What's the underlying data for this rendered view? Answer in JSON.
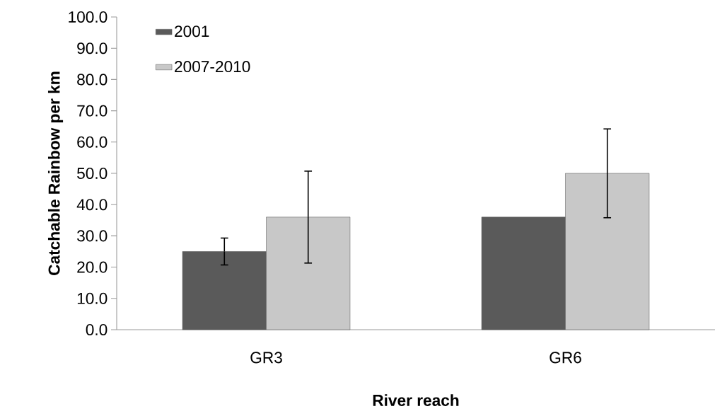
{
  "chart_data": {
    "type": "bar",
    "xlabel": "River reach",
    "ylabel": "Catchable Rainbow per km",
    "categories": [
      "GR3",
      "GR6"
    ],
    "series": [
      {
        "name": "2001",
        "color": "#5a5a5a",
        "values": [
          25.0,
          36.0
        ],
        "errors": [
          4.3,
          null
        ]
      },
      {
        "name": "2007-2010",
        "color": "#c8c8c8",
        "values": [
          36.0,
          50.0
        ],
        "errors": [
          14.7,
          14.2
        ]
      }
    ],
    "ylim": [
      0,
      100
    ],
    "yticks": [
      {
        "value": 0,
        "label": "0.0"
      },
      {
        "value": 10,
        "label": "10.0"
      },
      {
        "value": 20,
        "label": "20.0"
      },
      {
        "value": 30,
        "label": "30.0"
      },
      {
        "value": 40,
        "label": "40.0"
      },
      {
        "value": 50,
        "label": "50.0"
      },
      {
        "value": 60,
        "label": "60.0"
      },
      {
        "value": 70,
        "label": "70.0"
      },
      {
        "value": 80,
        "label": "80.0"
      },
      {
        "value": 90,
        "label": "90.0"
      },
      {
        "value": 100,
        "label": "100.0"
      }
    ],
    "grid": false,
    "legend": "top left"
  }
}
